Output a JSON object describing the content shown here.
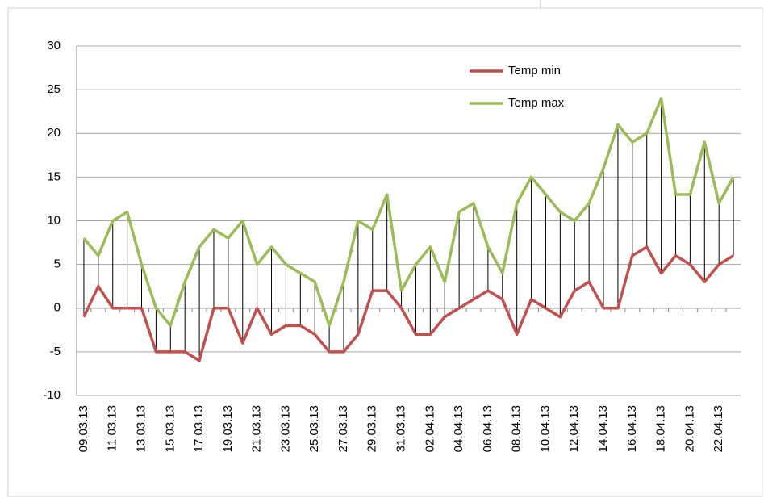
{
  "chart_data": {
    "type": "line",
    "categories": [
      "09.03.13",
      null,
      "11.03.13",
      null,
      "13.03.13",
      null,
      "15.03.13",
      null,
      "17.03.13",
      null,
      "19.03.13",
      null,
      "21.03.13",
      null,
      "23.03.13",
      null,
      "25.03.13",
      null,
      "27.03.13",
      null,
      "29.03.13",
      null,
      "31.03.13",
      null,
      "02.04.13",
      null,
      "04.04.13",
      null,
      "06.04.13",
      null,
      "08.04.13",
      null,
      "10.04.13",
      null,
      "12.04.13",
      null,
      "14.04.13",
      null,
      "16.04.13",
      null,
      "18.04.13",
      null,
      "20.04.13",
      null,
      "22.04.13",
      null
    ],
    "series": [
      {
        "name": "Temp min",
        "color": "#c0504d",
        "values": [
          -1,
          2.5,
          0,
          0,
          0,
          -5,
          -5,
          -5,
          -6,
          0,
          0,
          -4,
          0,
          -3,
          -2,
          -2,
          -3,
          -5,
          -5,
          -3,
          2,
          2,
          0,
          -3,
          -3,
          -1,
          0,
          1,
          2,
          1,
          -3,
          1,
          0,
          -1,
          2,
          3,
          0,
          0,
          6,
          7,
          4,
          6,
          5,
          3,
          5,
          6
        ]
      },
      {
        "name": "Temp max",
        "color": "#9bbb59",
        "values": [
          8,
          6,
          10,
          11,
          5,
          0,
          -2,
          3,
          7,
          9,
          8,
          10,
          5,
          7,
          5,
          4,
          3,
          -2,
          3,
          10,
          9,
          13,
          2,
          5,
          7,
          3,
          11,
          12,
          7,
          4,
          12,
          15,
          13,
          11,
          10,
          12,
          16,
          21,
          19,
          20,
          24,
          13,
          13,
          19,
          12,
          15
        ]
      }
    ],
    "ylim": [
      -10,
      30
    ],
    "yticks": [
      -10,
      -5,
      0,
      5,
      10,
      15,
      20,
      25,
      30
    ],
    "grid": true,
    "hi_low_lines": true,
    "legend": "top-right"
  }
}
